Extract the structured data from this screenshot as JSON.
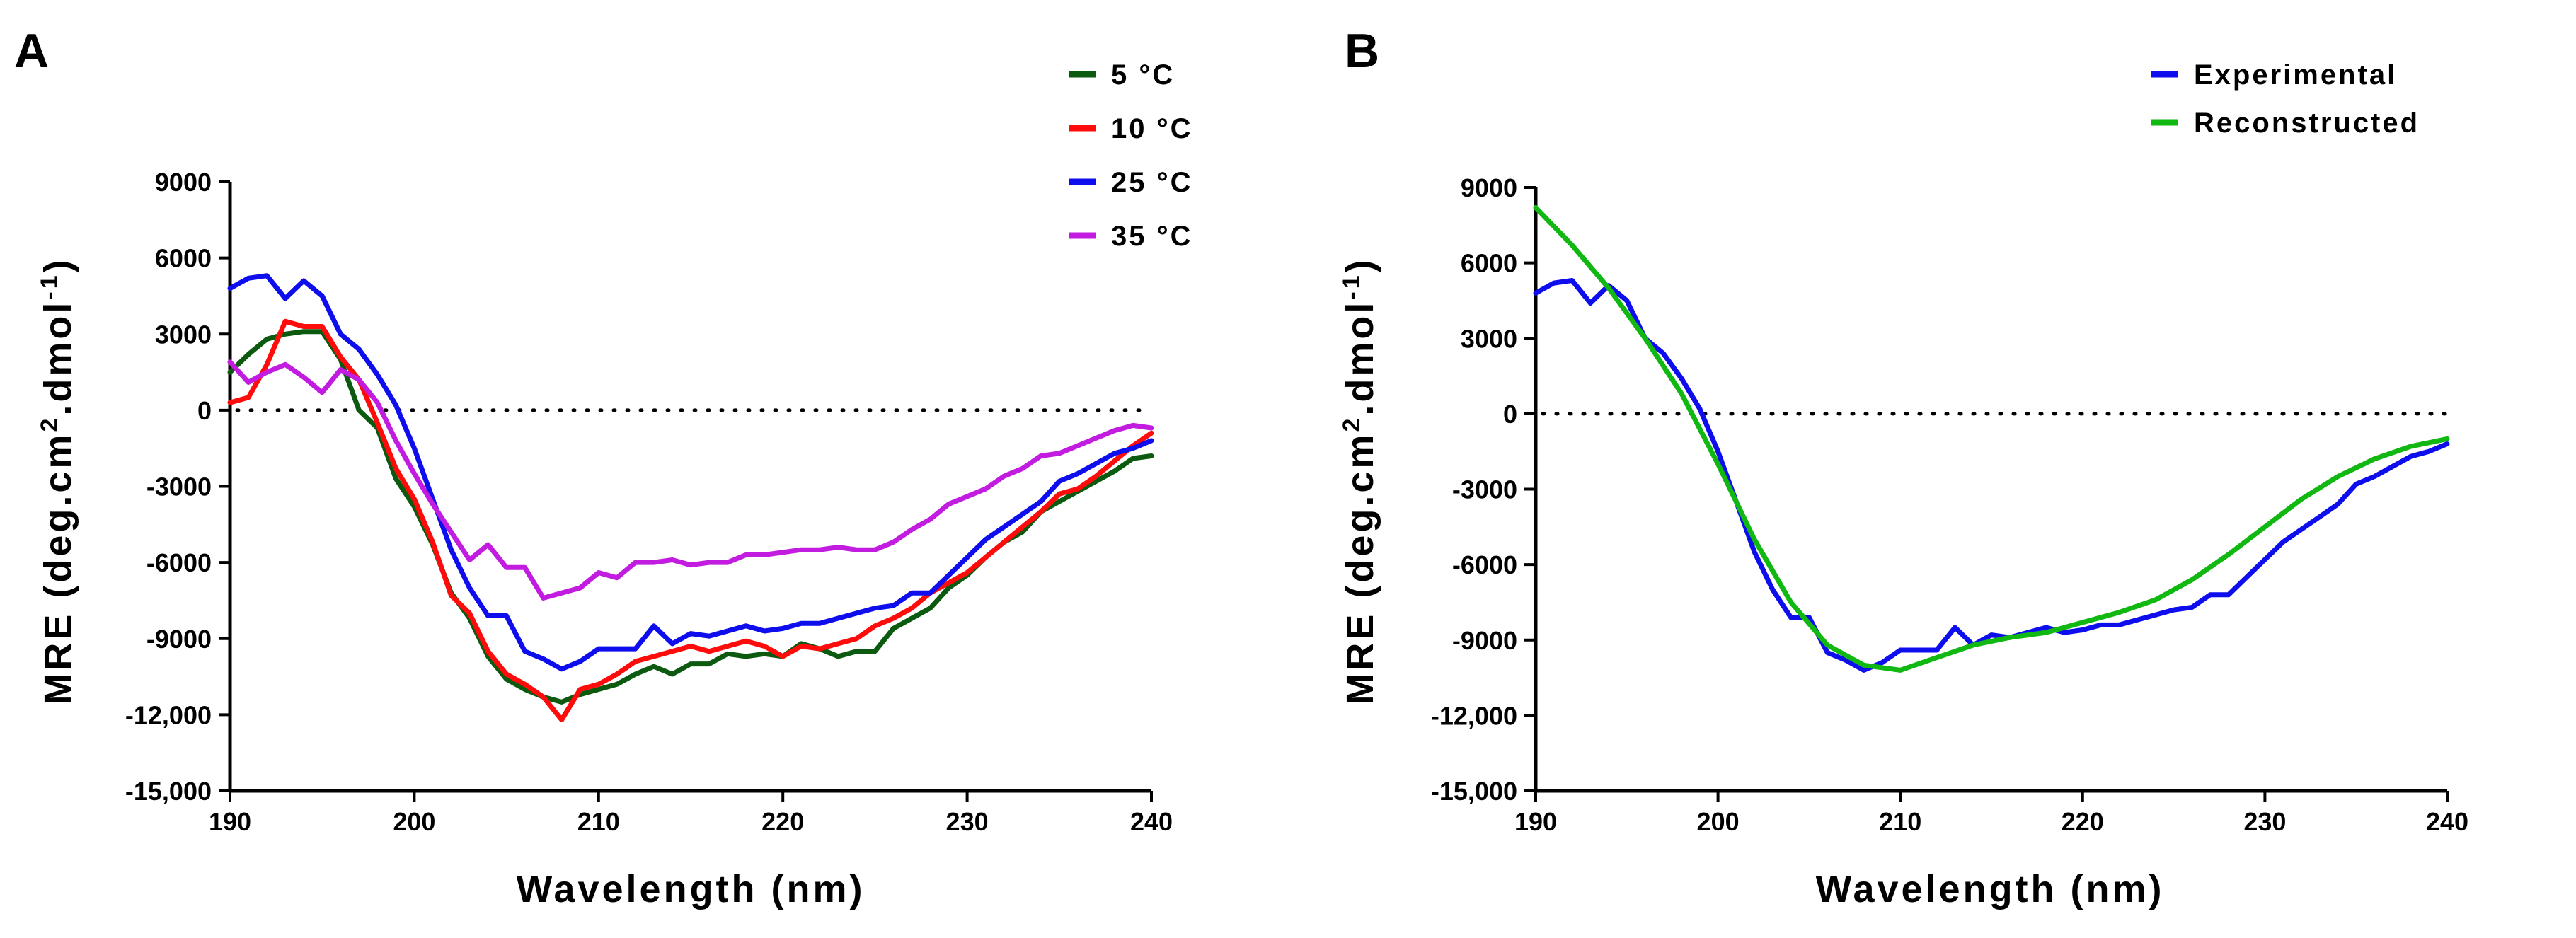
{
  "chart_data": [
    {
      "panel": "A",
      "type": "line",
      "ylabel": "MRE (deg.cm²·dmol⁻¹)",
      "ylabel_main": "MRE (deg.cm",
      "ylabel_sup1": "2",
      "ylabel_mid": ".dmol",
      "ylabel_sup2": "-1",
      "ylabel_end": ")",
      "xlabel": "Wavelength (nm)",
      "xlim": [
        190,
        240
      ],
      "ylim": [
        -15000,
        9000
      ],
      "xticks": [
        190,
        200,
        210,
        220,
        230,
        240
      ],
      "yticks": [
        -15000,
        -12000,
        -9000,
        -6000,
        -3000,
        0,
        3000,
        6000,
        9000
      ],
      "ytick_labels": [
        "-15,000",
        "-12,000",
        "-9000",
        "-6000",
        "-3000",
        "0",
        "3000",
        "6000",
        "9000"
      ],
      "zero_line": true,
      "legend_placement": "top-right",
      "series": [
        {
          "name": "5 °C",
          "color": "#0b5a10",
          "x": [
            190,
            191,
            192,
            193,
            194,
            195,
            196,
            197,
            198,
            199,
            200,
            201,
            202,
            203,
            204,
            205,
            206,
            207,
            208,
            209,
            210,
            211,
            212,
            213,
            214,
            215,
            216,
            217,
            218,
            219,
            220,
            221,
            222,
            223,
            224,
            225,
            226,
            227,
            228,
            229,
            230,
            231,
            232,
            233,
            234,
            235,
            236,
            237,
            238,
            239,
            240
          ],
          "y": [
            1500,
            2200,
            2800,
            3000,
            3100,
            3100,
            2000,
            0,
            -700,
            -2700,
            -3800,
            -5300,
            -7200,
            -8200,
            -9700,
            -10600,
            -11000,
            -11300,
            -11500,
            -11200,
            -11000,
            -10800,
            -10400,
            -10100,
            -10400,
            -10000,
            -10000,
            -9600,
            -9700,
            -9600,
            -9700,
            -9200,
            -9400,
            -9700,
            -9500,
            -9500,
            -8600,
            -8200,
            -7800,
            -7000,
            -6500,
            -5800,
            -5200,
            -4800,
            -4000,
            -3600,
            -3200,
            -2800,
            -2400,
            -1900,
            -1800
          ]
        },
        {
          "name": "10 °C",
          "color": "#ff0b0b",
          "x": [
            190,
            191,
            192,
            193,
            194,
            195,
            196,
            197,
            198,
            199,
            200,
            201,
            202,
            203,
            204,
            205,
            206,
            207,
            208,
            209,
            210,
            211,
            212,
            213,
            214,
            215,
            216,
            217,
            218,
            219,
            220,
            221,
            222,
            223,
            224,
            225,
            226,
            227,
            228,
            229,
            230,
            231,
            232,
            233,
            234,
            235,
            236,
            237,
            238,
            239,
            240
          ],
          "y": [
            300,
            500,
            1800,
            3500,
            3300,
            3300,
            2100,
            1200,
            -500,
            -2300,
            -3500,
            -5200,
            -7300,
            -8000,
            -9500,
            -10400,
            -10800,
            -11300,
            -12200,
            -11000,
            -10800,
            -10400,
            -9900,
            -9700,
            -9500,
            -9300,
            -9500,
            -9300,
            -9100,
            -9300,
            -9700,
            -9300,
            -9400,
            -9200,
            -9000,
            -8500,
            -8200,
            -7800,
            -7200,
            -6800,
            -6400,
            -5800,
            -5200,
            -4600,
            -4000,
            -3300,
            -3100,
            -2600,
            -2000,
            -1400,
            -900
          ]
        },
        {
          "name": "25 °C",
          "color": "#0d0ded",
          "x": [
            190,
            191,
            192,
            193,
            194,
            195,
            196,
            197,
            198,
            199,
            200,
            201,
            202,
            203,
            204,
            205,
            206,
            207,
            208,
            209,
            210,
            211,
            212,
            213,
            214,
            215,
            216,
            217,
            218,
            219,
            220,
            221,
            222,
            223,
            224,
            225,
            226,
            227,
            228,
            229,
            230,
            231,
            232,
            233,
            234,
            235,
            236,
            237,
            238,
            239,
            240
          ],
          "y": [
            4800,
            5200,
            5300,
            4400,
            5100,
            4500,
            3000,
            2400,
            1400,
            200,
            -1500,
            -3500,
            -5500,
            -7000,
            -8100,
            -8100,
            -9500,
            -9800,
            -10200,
            -9900,
            -9400,
            -9400,
            -9400,
            -8500,
            -9200,
            -8800,
            -8900,
            -8700,
            -8500,
            -8700,
            -8600,
            -8400,
            -8400,
            -8200,
            -8000,
            -7800,
            -7700,
            -7200,
            -7200,
            -6500,
            -5800,
            -5100,
            -4600,
            -4100,
            -3600,
            -2800,
            -2500,
            -2100,
            -1700,
            -1500,
            -1200
          ]
        },
        {
          "name": "35 °C",
          "color": "#c11ce0",
          "x": [
            190,
            191,
            192,
            193,
            194,
            195,
            196,
            197,
            198,
            199,
            200,
            201,
            202,
            203,
            204,
            205,
            206,
            207,
            208,
            209,
            210,
            211,
            212,
            213,
            214,
            215,
            216,
            217,
            218,
            219,
            220,
            221,
            222,
            223,
            224,
            225,
            226,
            227,
            228,
            229,
            230,
            231,
            232,
            233,
            234,
            235,
            236,
            237,
            238,
            239,
            240
          ],
          "y": [
            1900,
            1100,
            1500,
            1800,
            1300,
            700,
            1600,
            1200,
            300,
            -1200,
            -2500,
            -3700,
            -4800,
            -5900,
            -5300,
            -6200,
            -6200,
            -7400,
            -7200,
            -7000,
            -6400,
            -6600,
            -6000,
            -6000,
            -5900,
            -6100,
            -6000,
            -6000,
            -5700,
            -5700,
            -5600,
            -5500,
            -5500,
            -5400,
            -5500,
            -5500,
            -5200,
            -4700,
            -4300,
            -3700,
            -3400,
            -3100,
            -2600,
            -2300,
            -1800,
            -1700,
            -1400,
            -1100,
            -800,
            -600,
            -700
          ]
        }
      ]
    },
    {
      "panel": "B",
      "type": "line",
      "ylabel": "MRE (deg.cm²·dmol⁻¹)",
      "ylabel_main": "MRE (deg.cm",
      "ylabel_sup1": "2",
      "ylabel_mid": ".dmol",
      "ylabel_sup2": "-1",
      "ylabel_end": ")",
      "xlabel": "Wavelength (nm)",
      "xlim": [
        190,
        240
      ],
      "ylim": [
        -15000,
        9000
      ],
      "xticks": [
        190,
        200,
        210,
        220,
        230,
        240
      ],
      "yticks": [
        -15000,
        -12000,
        -9000,
        -6000,
        -3000,
        0,
        3000,
        6000,
        9000
      ],
      "ytick_labels": [
        "-15,000",
        "-12,000",
        "-9000",
        "-6000",
        "-3000",
        "0",
        "3000",
        "6000",
        "9000"
      ],
      "zero_line": true,
      "legend_placement": "top-right",
      "series": [
        {
          "name": "Experimental",
          "color": "#0d0ded",
          "x": [
            190,
            191,
            192,
            193,
            194,
            195,
            196,
            197,
            198,
            199,
            200,
            201,
            202,
            203,
            204,
            205,
            206,
            207,
            208,
            209,
            210,
            211,
            212,
            213,
            214,
            215,
            216,
            217,
            218,
            219,
            220,
            221,
            222,
            223,
            224,
            225,
            226,
            227,
            228,
            229,
            230,
            231,
            232,
            233,
            234,
            235,
            236,
            237,
            238,
            239,
            240
          ],
          "y": [
            4800,
            5200,
            5300,
            4400,
            5100,
            4500,
            3000,
            2400,
            1400,
            200,
            -1500,
            -3500,
            -5500,
            -7000,
            -8100,
            -8100,
            -9500,
            -9800,
            -10200,
            -9900,
            -9400,
            -9400,
            -9400,
            -8500,
            -9200,
            -8800,
            -8900,
            -8700,
            -8500,
            -8700,
            -8600,
            -8400,
            -8400,
            -8200,
            -8000,
            -7800,
            -7700,
            -7200,
            -7200,
            -6500,
            -5800,
            -5100,
            -4600,
            -4100,
            -3600,
            -2800,
            -2500,
            -2100,
            -1700,
            -1500,
            -1200
          ]
        },
        {
          "name": "Reconstructed",
          "color": "#11b811",
          "x": [
            190,
            192,
            194,
            196,
            198,
            200,
            202,
            204,
            206,
            208,
            210,
            212,
            214,
            216,
            218,
            220,
            222,
            224,
            226,
            228,
            230,
            232,
            234,
            236,
            238,
            240
          ],
          "y": [
            8200,
            6700,
            5000,
            3000,
            800,
            -2000,
            -5000,
            -7500,
            -9200,
            -10000,
            -10200,
            -9700,
            -9200,
            -8900,
            -8700,
            -8300,
            -7900,
            -7400,
            -6600,
            -5600,
            -4500,
            -3400,
            -2500,
            -1800,
            -1300,
            -1000
          ]
        }
      ]
    }
  ]
}
